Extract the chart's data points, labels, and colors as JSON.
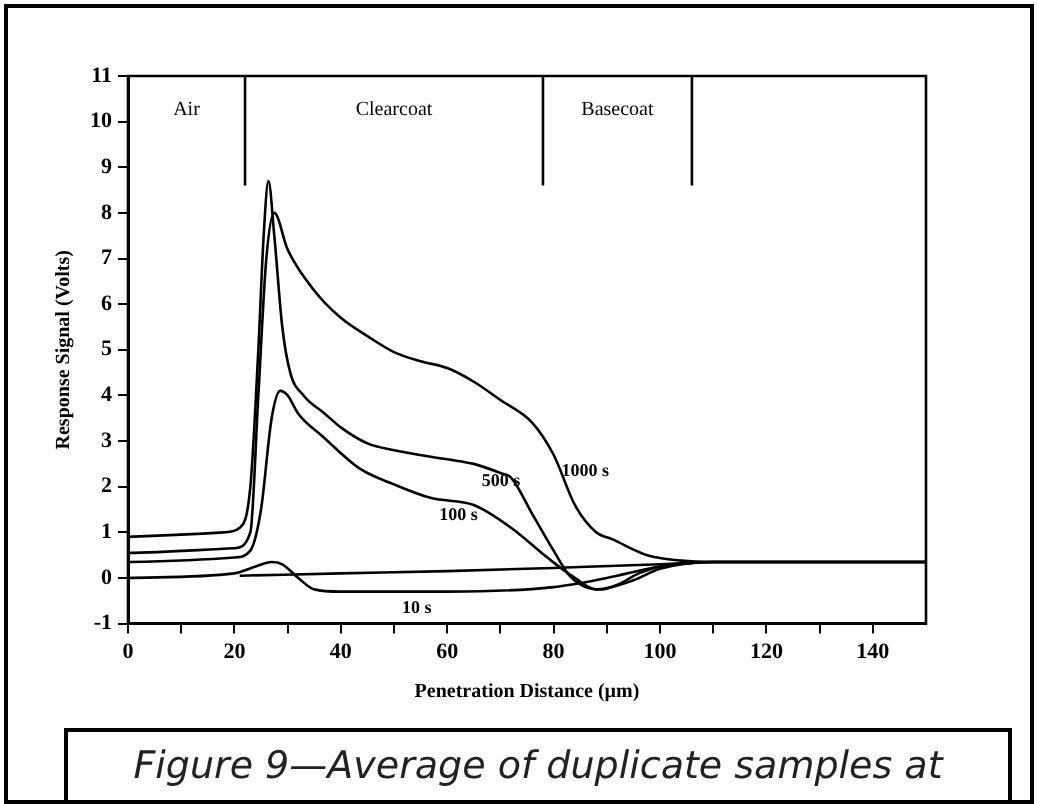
{
  "chart_data": {
    "type": "line",
    "xlabel": "Penetration Distance (µm)",
    "ylabel": "Response Signal (Volts)",
    "xlim": [
      0,
      150
    ],
    "ylim": [
      -1,
      11
    ],
    "xticks": [
      0,
      {
        "value": 10,
        "label": null
      },
      20,
      {
        "value": 30,
        "label": null
      },
      40,
      {
        "value": 50,
        "label": null
      },
      60,
      {
        "value": 70,
        "label": null
      },
      80,
      {
        "value": 90,
        "label": null
      },
      100,
      {
        "value": 110,
        "label": null
      },
      120,
      {
        "value": 130,
        "label": null
      },
      140
    ],
    "yticks": [
      -1,
      0,
      1,
      2,
      3,
      4,
      5,
      6,
      7,
      8,
      9,
      10,
      11
    ],
    "grid": false,
    "legend": false,
    "marker": "none",
    "line_style": "solid",
    "series": [
      {
        "color": "#000000",
        "x": [
          0,
          10,
          18,
          21,
          23,
          24.5,
          25.5,
          26.4,
          27.5,
          29,
          30.5,
          33,
          37,
          40,
          45,
          50,
          60,
          65,
          70,
          72,
          76,
          80,
          83,
          86,
          89,
          92,
          96,
          100,
          110,
          150
        ],
        "values": [
          0.9,
          0.95,
          1.0,
          1.1,
          2,
          5,
          7.5,
          8.7,
          7.5,
          5.5,
          4.5,
          4.0,
          3.6,
          3.3,
          2.95,
          2.8,
          2.6,
          2.5,
          2.3,
          2.2,
          1.4,
          0.6,
          0.05,
          -0.2,
          -0.25,
          -0.15,
          0.1,
          0.25,
          0.35,
          0.35
        ]
      },
      {
        "color": "#000000",
        "x": [
          0,
          20,
          23,
          24.5,
          26,
          27.5,
          30,
          35,
          40,
          45,
          50,
          55,
          60,
          65,
          70,
          76,
          80,
          84,
          88,
          91,
          97.6,
          104,
          110,
          150
        ],
        "values": [
          0.55,
          0.65,
          1,
          4,
          7,
          8.0,
          7.2,
          6.3,
          5.7,
          5.3,
          4.95,
          4.75,
          4.6,
          4.3,
          3.9,
          3.4,
          2.7,
          1.6,
          1.0,
          0.85,
          0.5,
          0.38,
          0.35,
          0.35
        ]
      },
      {
        "color": "#000000",
        "x": [
          0,
          20,
          23,
          25,
          27,
          28.6,
          30,
          32,
          36.6,
          43.5,
          50,
          57,
          65,
          72,
          79,
          84,
          88,
          95,
          100,
          110,
          150
        ],
        "values": [
          0.35,
          0.45,
          0.6,
          1.5,
          3.5,
          4.1,
          4.0,
          3.6,
          3.1,
          2.4,
          2.05,
          1.75,
          1.6,
          1.1,
          0.43,
          0.0,
          -0.25,
          -0.05,
          0.2,
          0.35,
          0.35
        ]
      },
      {
        "color": "#000000",
        "x": [
          0,
          20,
          24,
          27,
          29,
          32,
          35,
          40,
          60,
          80,
          90,
          100,
          110,
          150
        ],
        "values": [
          0,
          0.1,
          0.25,
          0.35,
          0.3,
          0,
          -0.25,
          -0.3,
          -0.3,
          -0.2,
          0,
          0.25,
          0.35,
          0.35
        ]
      },
      {
        "color": "#000000",
        "x": [
          21,
          40,
          60,
          80,
          100,
          106
        ],
        "values": [
          0.05,
          0.1,
          0.15,
          0.22,
          0.3,
          0.33
        ]
      }
    ],
    "ref_lines": [
      {
        "axis": "x",
        "value": 22
      },
      {
        "axis": "x",
        "value": 78
      },
      {
        "axis": "x",
        "value": 106
      }
    ],
    "annotations": [
      "Air",
      "Clearcoat",
      "Basecoat",
      {
        "text": "1000 s",
        "x": 80,
        "y": 2.7
      },
      {
        "text": "500 s",
        "x": 65,
        "y": 2.5
      },
      {
        "text": "100 s",
        "x": 57,
        "y": 1.75
      },
      {
        "text": "10 s",
        "x": 50,
        "y": -0.3
      },
      "Figure 9—Average of duplicate samples at"
    ]
  }
}
